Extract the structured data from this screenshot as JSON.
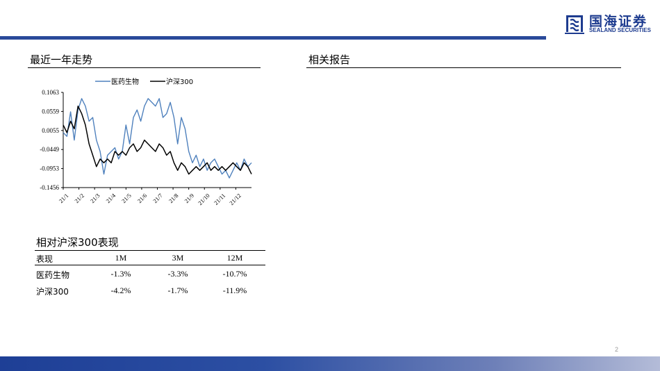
{
  "header": {
    "logo_cn": "国海证券",
    "logo_en": "SEALAND SECURITIES",
    "colors": {
      "brand": "#1d3b8f",
      "bar": "#2a4a9a"
    }
  },
  "left": {
    "trend_title": "最近一年走势"
  },
  "right": {
    "reports_title": "相关报告"
  },
  "chart_data": {
    "type": "line",
    "title": "",
    "xlabel": "",
    "ylabel": "",
    "legend": "top",
    "grid": false,
    "y_ticks": [
      "0.1063",
      "0.0559",
      "0.0055",
      "-0.0449",
      "-0.0953",
      "-0.1456"
    ],
    "ylim": [
      -0.1456,
      0.1063
    ],
    "x_ticks": [
      "21/1",
      "21/2",
      "21/3",
      "21/4",
      "21/5",
      "21/6",
      "21/7",
      "21/8",
      "21/9",
      "21/10",
      "21/11",
      "21/12"
    ],
    "series": [
      {
        "name": "医药生物",
        "color": "#4f81bd",
        "values": [
          0.0,
          -0.01,
          0.055,
          -0.02,
          0.06,
          0.09,
          0.07,
          0.03,
          0.04,
          -0.02,
          -0.05,
          -0.11,
          -0.06,
          -0.05,
          -0.04,
          -0.07,
          -0.05,
          0.02,
          -0.03,
          0.04,
          0.06,
          0.03,
          0.07,
          0.09,
          0.08,
          0.07,
          0.09,
          0.04,
          0.05,
          0.08,
          0.04,
          -0.03,
          0.04,
          0.01,
          -0.05,
          -0.08,
          -0.06,
          -0.09,
          -0.07,
          -0.1,
          -0.08,
          -0.07,
          -0.09,
          -0.11,
          -0.1,
          -0.12,
          -0.1,
          -0.08,
          -0.1,
          -0.07,
          -0.09,
          -0.08
        ]
      },
      {
        "name": "沪深300",
        "color": "#000000",
        "values": [
          0.02,
          0.0,
          0.03,
          0.01,
          0.07,
          0.05,
          0.02,
          -0.03,
          -0.06,
          -0.09,
          -0.07,
          -0.08,
          -0.07,
          -0.08,
          -0.05,
          -0.06,
          -0.05,
          -0.06,
          -0.04,
          -0.03,
          -0.05,
          -0.04,
          -0.02,
          -0.03,
          -0.04,
          -0.05,
          -0.03,
          -0.04,
          -0.06,
          -0.05,
          -0.08,
          -0.1,
          -0.08,
          -0.09,
          -0.11,
          -0.1,
          -0.09,
          -0.1,
          -0.09,
          -0.08,
          -0.1,
          -0.09,
          -0.1,
          -0.09,
          -0.1,
          -0.09,
          -0.08,
          -0.09,
          -0.1,
          -0.08,
          -0.09,
          -0.11
        ]
      }
    ]
  },
  "relative": {
    "title": "相对沪深300表现",
    "headers": [
      "表现",
      "1M",
      "3M",
      "12M"
    ],
    "rows": [
      {
        "name": "医药生物",
        "m1": "-1.3%",
        "m3": "-3.3%",
        "m12": "-10.7%"
      },
      {
        "name": "沪深300",
        "m1": "-4.2%",
        "m3": "-1.7%",
        "m12": "-11.9%"
      }
    ]
  },
  "footer": {
    "page_number": "2"
  }
}
